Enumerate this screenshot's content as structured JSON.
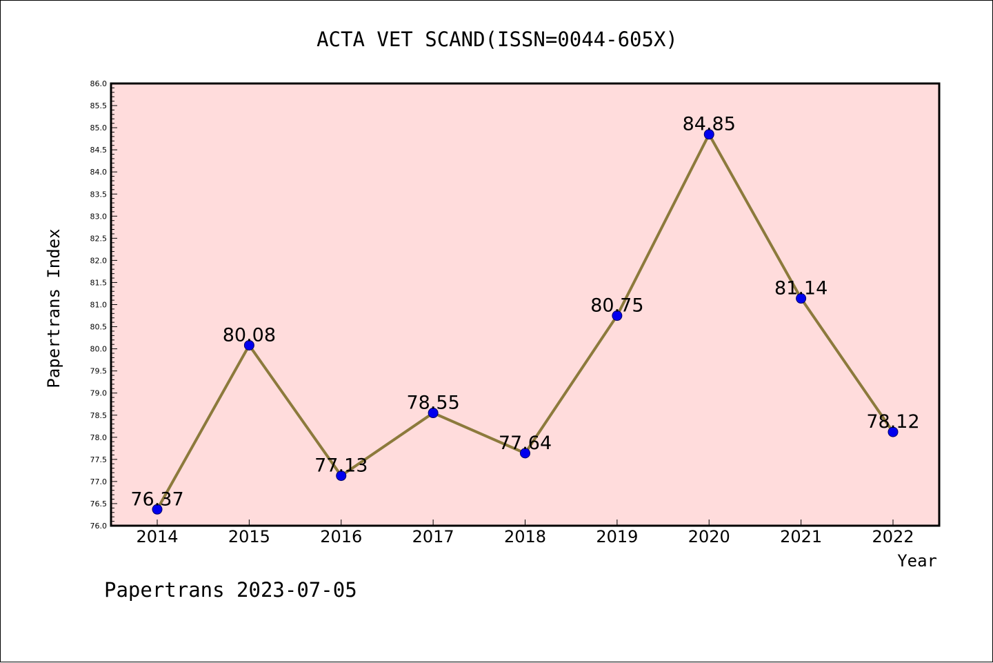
{
  "chart_data": {
    "type": "line",
    "title": "ACTA VET SCAND(ISSN=0044-605X)",
    "xlabel": "Year",
    "ylabel": "Papertrans Index",
    "x": [
      "2014",
      "2015",
      "2016",
      "2017",
      "2018",
      "2019",
      "2020",
      "2021",
      "2022"
    ],
    "values": [
      76.37,
      80.08,
      77.13,
      78.55,
      77.64,
      80.75,
      84.85,
      81.14,
      78.12
    ],
    "data_labels": [
      "76.37",
      "80.08",
      "77.13",
      "78.55",
      "77.64",
      "80.75",
      "84.85",
      "81.14",
      "78.12"
    ],
    "ylim": [
      76.0,
      86.0
    ],
    "yticks": [
      "76.0",
      "76.5",
      "77.0",
      "77.5",
      "78.0",
      "78.5",
      "79.0",
      "79.5",
      "80.0",
      "80.5",
      "81.0",
      "81.5",
      "82.0",
      "82.5",
      "83.0",
      "83.5",
      "84.0",
      "84.5",
      "85.0",
      "85.5",
      "86.0"
    ],
    "grid": false,
    "colors": {
      "plot_background": "#ffdcdc",
      "line": "#8c7a3c",
      "marker": "#0000ee",
      "marker_edge": "#000066"
    }
  },
  "footer": "Papertrans 2023-07-05"
}
